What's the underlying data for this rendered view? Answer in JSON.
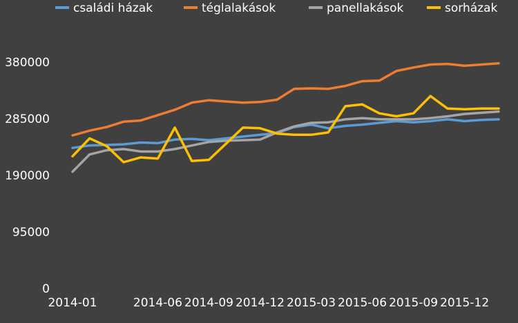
{
  "chart_data": {
    "type": "line",
    "title": "",
    "xlabel": "",
    "ylabel": "",
    "ylim": [
      0,
      380000
    ],
    "yticks": [
      0,
      95000,
      190000,
      285000,
      380000
    ],
    "grid": false,
    "legend_position": "top",
    "x": [
      "2014-01",
      "2014-02",
      "2014-03",
      "2014-04",
      "2014-05",
      "2014-06",
      "2014-07",
      "2014-08",
      "2014-09",
      "2014-10",
      "2014-11",
      "2014-12",
      "2015-01",
      "2015-02",
      "2015-03",
      "2015-04",
      "2015-05",
      "2015-06",
      "2015-07",
      "2015-08",
      "2015-09",
      "2015-10",
      "2015-11",
      "2015-12",
      "2016-01",
      "2016-02"
    ],
    "xtick_labels": [
      "2014-01",
      "2014-06",
      "2014-09",
      "2014-12",
      "2015-03",
      "2015-06",
      "2015-09",
      "2015-12"
    ],
    "series": [
      {
        "name": "családi házak",
        "color": "#5b9bd5",
        "values": [
          236000,
          240000,
          241000,
          242000,
          245000,
          244000,
          250000,
          251000,
          249000,
          252000,
          255000,
          258000,
          261000,
          271000,
          275000,
          269000,
          273000,
          275000,
          278000,
          281000,
          279000,
          281000,
          284000,
          281000,
          283000,
          284000
        ]
      },
      {
        "name": "téglalakások",
        "color": "#ed7d31",
        "values": [
          257000,
          265000,
          271000,
          280000,
          282000,
          291000,
          300000,
          312000,
          316000,
          314000,
          312000,
          313000,
          317000,
          335000,
          336000,
          335000,
          340000,
          348000,
          349000,
          365000,
          371000,
          376000,
          377000,
          374000,
          376000,
          378000
        ]
      },
      {
        "name": "panellakások",
        "color": "#a5a5a5",
        "values": [
          196000,
          225000,
          232000,
          234000,
          230000,
          230000,
          234000,
          240000,
          246000,
          248000,
          249000,
          250000,
          262000,
          272000,
          278000,
          279000,
          284000,
          286000,
          284000,
          284000,
          284000,
          286000,
          289000,
          293000,
          295000,
          297000
        ]
      },
      {
        "name": "sorházak",
        "color": "#ffc000",
        "values": [
          222000,
          252000,
          239000,
          212000,
          220000,
          218000,
          270000,
          214000,
          216000,
          243000,
          270000,
          269000,
          260000,
          258000,
          258000,
          262000,
          306000,
          309000,
          294000,
          289000,
          294000,
          323000,
          302000,
          301000,
          302000,
          302000
        ]
      }
    ]
  }
}
